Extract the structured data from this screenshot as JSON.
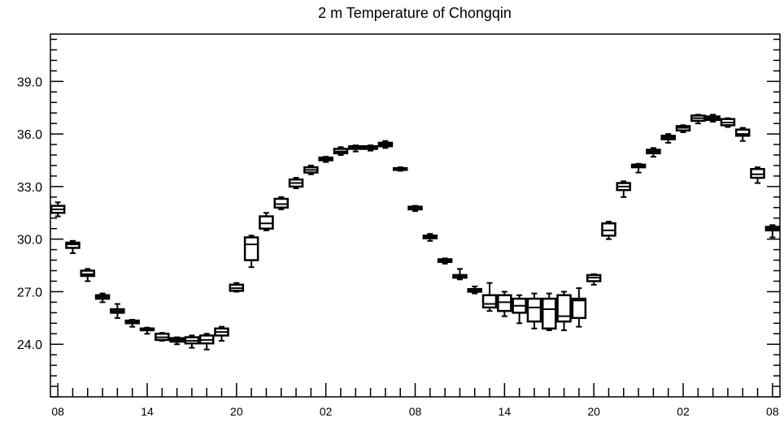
{
  "chart_data": {
    "type": "box",
    "title": "2 m Temperature of Chongqin",
    "xlabel": "",
    "ylabel": "",
    "ylim": [
      21.0,
      41.7
    ],
    "yticks": [
      24.0,
      27.0,
      30.0,
      33.0,
      36.0,
      39.0
    ],
    "ytick_labels": [
      "24.0",
      "27.0",
      "30.0",
      "33.0",
      "36.0",
      "39.0"
    ],
    "xlim": [
      -0.5,
      48.5
    ],
    "xticks": [
      0,
      6,
      12,
      18,
      24,
      30,
      36,
      42,
      48
    ],
    "xtick_labels": [
      "08",
      "14",
      "20",
      "02",
      "08",
      "14",
      "20",
      "02",
      "08"
    ],
    "boxes": [
      {
        "x": 0,
        "min": 31.3,
        "q1": 31.5,
        "median": 31.7,
        "q3": 31.9,
        "max": 32.1
      },
      {
        "x": 1,
        "min": 29.2,
        "q1": 29.5,
        "median": 29.7,
        "q3": 29.8,
        "max": 29.9
      },
      {
        "x": 2,
        "min": 27.6,
        "q1": 27.9,
        "median": 28.0,
        "q3": 28.2,
        "max": 28.3
      },
      {
        "x": 3,
        "min": 26.4,
        "q1": 26.6,
        "median": 26.7,
        "q3": 26.8,
        "max": 26.9
      },
      {
        "x": 4,
        "min": 25.5,
        "q1": 25.8,
        "median": 25.9,
        "q3": 26.0,
        "max": 26.3
      },
      {
        "x": 5,
        "min": 25.0,
        "q1": 25.2,
        "median": 25.3,
        "q3": 25.35,
        "max": 25.4
      },
      {
        "x": 6,
        "min": 24.6,
        "q1": 24.8,
        "median": 24.85,
        "q3": 24.9,
        "max": 24.95
      },
      {
        "x": 7,
        "min": 24.2,
        "q1": 24.25,
        "median": 24.4,
        "q3": 24.6,
        "max": 24.65
      },
      {
        "x": 8,
        "min": 24.0,
        "q1": 24.15,
        "median": 24.25,
        "q3": 24.35,
        "max": 24.4
      },
      {
        "x": 9,
        "min": 23.8,
        "q1": 24.05,
        "median": 24.2,
        "q3": 24.4,
        "max": 24.5
      },
      {
        "x": 10,
        "min": 23.7,
        "q1": 24.05,
        "median": 24.25,
        "q3": 24.5,
        "max": 24.6
      },
      {
        "x": 11,
        "min": 24.2,
        "q1": 24.5,
        "median": 24.7,
        "q3": 24.9,
        "max": 25.0
      },
      {
        "x": 12,
        "min": 27.0,
        "q1": 27.05,
        "median": 27.2,
        "q3": 27.4,
        "max": 27.5
      },
      {
        "x": 13,
        "min": 28.4,
        "q1": 28.8,
        "median": 29.7,
        "q3": 30.1,
        "max": 30.2
      },
      {
        "x": 14,
        "min": 30.5,
        "q1": 30.6,
        "median": 30.9,
        "q3": 31.3,
        "max": 31.5
      },
      {
        "x": 15,
        "min": 31.7,
        "q1": 31.8,
        "median": 32.0,
        "q3": 32.3,
        "max": 32.4
      },
      {
        "x": 16,
        "min": 32.9,
        "q1": 33.0,
        "median": 33.2,
        "q3": 33.4,
        "max": 33.5
      },
      {
        "x": 17,
        "min": 33.7,
        "q1": 33.8,
        "median": 33.95,
        "q3": 34.1,
        "max": 34.2
      },
      {
        "x": 18,
        "min": 34.4,
        "q1": 34.5,
        "median": 34.55,
        "q3": 34.65,
        "max": 34.7
      },
      {
        "x": 19,
        "min": 34.8,
        "q1": 34.9,
        "median": 35.0,
        "q3": 35.15,
        "max": 35.25
      },
      {
        "x": 20,
        "min": 35.0,
        "q1": 35.15,
        "median": 35.25,
        "q3": 35.3,
        "max": 35.35
      },
      {
        "x": 21,
        "min": 35.05,
        "q1": 35.15,
        "median": 35.25,
        "q3": 35.3,
        "max": 35.35
      },
      {
        "x": 22,
        "min": 35.2,
        "q1": 35.3,
        "median": 35.4,
        "q3": 35.5,
        "max": 35.6
      },
      {
        "x": 23,
        "min": 33.9,
        "q1": 33.95,
        "median": 34.0,
        "q3": 34.05,
        "max": 34.1
      },
      {
        "x": 24,
        "min": 31.6,
        "q1": 31.7,
        "median": 31.8,
        "q3": 31.85,
        "max": 31.9
      },
      {
        "x": 25,
        "min": 29.9,
        "q1": 30.05,
        "median": 30.1,
        "q3": 30.2,
        "max": 30.3
      },
      {
        "x": 26,
        "min": 28.6,
        "q1": 28.7,
        "median": 28.8,
        "q3": 28.85,
        "max": 28.9
      },
      {
        "x": 27,
        "min": 27.7,
        "q1": 27.8,
        "median": 27.85,
        "q3": 27.95,
        "max": 28.3
      },
      {
        "x": 28,
        "min": 26.9,
        "q1": 27.0,
        "median": 27.05,
        "q3": 27.15,
        "max": 27.3
      },
      {
        "x": 29,
        "min": 25.9,
        "q1": 26.1,
        "median": 26.3,
        "q3": 26.8,
        "max": 27.5
      },
      {
        "x": 30,
        "min": 25.6,
        "q1": 25.9,
        "median": 26.4,
        "q3": 26.8,
        "max": 27.0
      },
      {
        "x": 31,
        "min": 25.2,
        "q1": 25.8,
        "median": 26.2,
        "q3": 26.6,
        "max": 26.8
      },
      {
        "x": 32,
        "min": 24.9,
        "q1": 25.3,
        "median": 26.1,
        "q3": 26.6,
        "max": 26.9
      },
      {
        "x": 33,
        "min": 24.8,
        "q1": 24.9,
        "median": 26.0,
        "q3": 26.6,
        "max": 26.9
      },
      {
        "x": 34,
        "min": 24.8,
        "q1": 25.3,
        "median": 25.6,
        "q3": 26.8,
        "max": 27.0
      },
      {
        "x": 35,
        "min": 25.0,
        "q1": 25.5,
        "median": 26.5,
        "q3": 26.6,
        "max": 27.2
      },
      {
        "x": 36,
        "min": 27.4,
        "q1": 27.6,
        "median": 27.8,
        "q3": 27.95,
        "max": 28.0
      },
      {
        "x": 37,
        "min": 30.0,
        "q1": 30.2,
        "median": 30.5,
        "q3": 30.9,
        "max": 31.0
      },
      {
        "x": 38,
        "min": 32.4,
        "q1": 32.8,
        "median": 33.0,
        "q3": 33.2,
        "max": 33.3
      },
      {
        "x": 39,
        "min": 33.8,
        "q1": 34.1,
        "median": 34.2,
        "q3": 34.25,
        "max": 34.3
      },
      {
        "x": 40,
        "min": 34.7,
        "q1": 34.9,
        "median": 35.0,
        "q3": 35.1,
        "max": 35.2
      },
      {
        "x": 41,
        "min": 35.5,
        "q1": 35.7,
        "median": 35.8,
        "q3": 35.9,
        "max": 36.0
      },
      {
        "x": 42,
        "min": 36.1,
        "q1": 36.2,
        "median": 36.35,
        "q3": 36.45,
        "max": 36.5
      },
      {
        "x": 43,
        "min": 36.6,
        "q1": 36.75,
        "median": 36.9,
        "q3": 37.05,
        "max": 37.1
      },
      {
        "x": 44,
        "min": 36.7,
        "q1": 36.8,
        "median": 36.9,
        "q3": 37.0,
        "max": 37.1
      },
      {
        "x": 45,
        "min": 36.4,
        "q1": 36.5,
        "median": 36.65,
        "q3": 36.85,
        "max": 36.9
      },
      {
        "x": 46,
        "min": 35.6,
        "q1": 35.9,
        "median": 36.0,
        "q3": 36.25,
        "max": 36.35
      },
      {
        "x": 47,
        "min": 33.2,
        "q1": 33.5,
        "median": 33.7,
        "q3": 34.0,
        "max": 34.1
      },
      {
        "x": 48,
        "min": 30.1,
        "q1": 30.5,
        "median": 30.6,
        "q3": 30.7,
        "max": 30.8
      }
    ],
    "grid": false,
    "legend": "none"
  }
}
